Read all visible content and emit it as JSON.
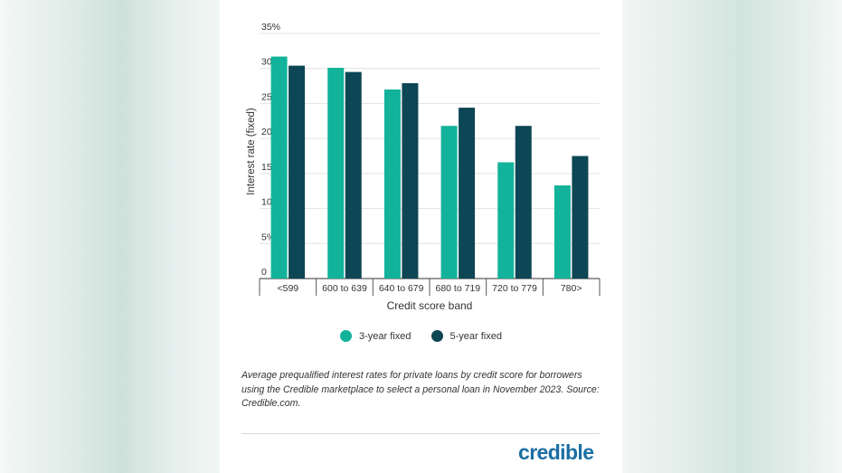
{
  "chart_data": {
    "type": "bar",
    "categories": [
      "<599",
      "600 to 639",
      "640 to 679",
      "680 to 719",
      "720 to 779",
      "780>"
    ],
    "series": [
      {
        "name": "3-year fixed",
        "values": [
          31.7,
          30.1,
          27.0,
          21.8,
          16.6,
          13.3
        ]
      },
      {
        "name": "5-year fixed",
        "values": [
          30.4,
          29.5,
          27.9,
          24.4,
          21.8,
          17.5
        ]
      }
    ],
    "xlabel": "Credit score band",
    "ylabel": "Interest rate (fixed)",
    "ylim": [
      0,
      35
    ],
    "yticks": [
      0,
      5,
      10,
      15,
      20,
      25,
      30,
      35
    ],
    "ytick_labels": [
      "0",
      "5%",
      "10%",
      "15%",
      "20%",
      "25%",
      "30%",
      "35%"
    ],
    "grid": true,
    "legend_position": "bottom"
  },
  "colors": {
    "series_1": "#12b39a",
    "series_2": "#0d4654",
    "grid": "#e2e2e2",
    "logo": "#1a6fa3"
  },
  "legend": {
    "items": [
      {
        "label": "3-year fixed",
        "color": "#12b39a"
      },
      {
        "label": "5-year fixed",
        "color": "#0d4654"
      }
    ]
  },
  "footnote": "Average prequalified interest rates for private loans by credit score for borrowers using the Credible marketplace to select a personal loan in November 2023. Source: Credible.com.",
  "brand": {
    "logo_text": "credible",
    "logo_icon": "credible-logo"
  }
}
